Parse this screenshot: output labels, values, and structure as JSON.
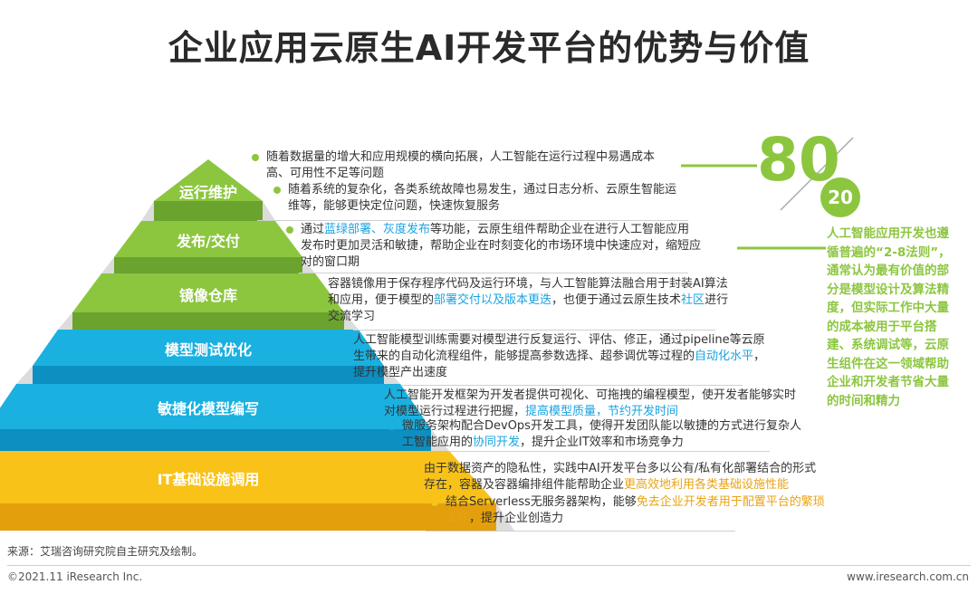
{
  "title": "企业应用云原生AI开发平台的优势与价值",
  "colors": {
    "green_light": "#8cc63f",
    "green_dark": "#6aa32e",
    "blue": "#1ab0e0",
    "blue_dark": "#0d8fc2",
    "yellow": "#f8c218",
    "yellow_dark": "#e39f0c",
    "shadow": "#dcdcdc"
  },
  "tiers": [
    {
      "label": "运行维护",
      "color": "green"
    },
    {
      "label": "发布/交付",
      "color": "green"
    },
    {
      "label": "镜像仓库",
      "color": "green"
    },
    {
      "label": "模型测试优化",
      "color": "blue"
    },
    {
      "label": "敏捷化模型编写",
      "color": "blue"
    },
    {
      "label": "IT基础设施调用",
      "color": "yellow"
    }
  ],
  "descriptions": [
    {
      "bullet_color": "#8cc63f",
      "parts": [
        {
          "t": "随着数据量的增大和应用规模的横向拓展，人工智能在运行过程中易遇成本高、可用性不足等问题"
        }
      ]
    },
    {
      "bullet_color": "#8cc63f",
      "parts": [
        {
          "t": "随着系统的复杂化，各类系统故障也易发生，通过日志分析、云原生智能运维等，能够更快定位问题，快速恢复服务"
        }
      ]
    },
    {
      "bullet_color": "#8cc63f",
      "parts": [
        {
          "t": "通过"
        },
        {
          "t": "蓝绿部署、灰度发布",
          "hl": "blue"
        },
        {
          "t": "等功能，云原生组件帮助企业在进行人工智能应用发布时更加灵活和敏捷，帮助企业在时刻变化的市场环境中快速应对，缩短应对的窗口期"
        }
      ]
    },
    {
      "bullet_color": "#8cc63f",
      "parts": [
        {
          "t": "容器镜像用于保存程序代码及运行环境，与人工智能算法融合用于封装AI算法和应用，便于模型的"
        },
        {
          "t": "部署交付以及版本更迭",
          "hl": "blue"
        },
        {
          "t": "，也便于通过云原生技术"
        },
        {
          "t": "社区",
          "hl": "blue"
        },
        {
          "t": "进行交流学习"
        }
      ]
    },
    {
      "bullet_color": "#1ab0e0",
      "parts": [
        {
          "t": "人工智能模型训练需要对模型进行反复运行、评估、修正，通过pipeline等云原生带来的自动化流程组件，能够提高参数选择、超参调优等过程的"
        },
        {
          "t": "自动化水平",
          "hl": "blue"
        },
        {
          "t": "，提升模型产出速度"
        }
      ]
    },
    {
      "bullet_color": "#1ab0e0",
      "parts": [
        {
          "t": "人工智能开发框架为开发者提供可视化、可拖拽的编程模型，使开发者能够实时对模型运行过程进行把握，"
        },
        {
          "t": "提高模型质量，节约开发时间",
          "hl": "blue"
        }
      ]
    },
    {
      "bullet_color": "#1ab0e0",
      "parts": [
        {
          "t": "微服务架构配合DevOps开发工具，使得开发团队能以敏捷的方式进行复杂人工智能应用的"
        },
        {
          "t": "协同开发",
          "hl": "blue"
        },
        {
          "t": "，提升企业IT效率和市场竞争力"
        }
      ]
    },
    {
      "bullet_color": "#f8c218",
      "parts": [
        {
          "t": "由于数据资产的隐私性，实践中AI开发平台多以公有/私有化部署结合的形式存在，容器及容器编排组件能帮助企业"
        },
        {
          "t": "更高效地利用各类基础设施性能",
          "hl": "yellow"
        }
      ]
    },
    {
      "bullet_color": "#f8c218",
      "parts": [
        {
          "t": "结合Serverless无服务器架构，能够"
        },
        {
          "t": "免去企业开发者用于配置平台的繁琐工作",
          "hl": "yellow"
        },
        {
          "t": "，提升企业创造力"
        }
      ]
    }
  ],
  "rule": {
    "big": "80",
    "small": "20",
    "text_parts": [
      {
        "t": "人工智能应用开发也遵循普遍的"
      },
      {
        "t": "“2-8法则”",
        "q": true
      },
      {
        "t": "，通常认为最有价值的部分是模型设计及算法精度，但实际工作中大量的成本被用于平台搭建、系统调试等，云原生组件在这一领域帮助企业和开发者节省大量的时间和精力"
      }
    ]
  },
  "footer": {
    "source": "来源：艾瑞咨询研究院自主研究及绘制。",
    "copyright": "©2021.11 iResearch Inc.",
    "website": "www.iresearch.com.cn"
  }
}
